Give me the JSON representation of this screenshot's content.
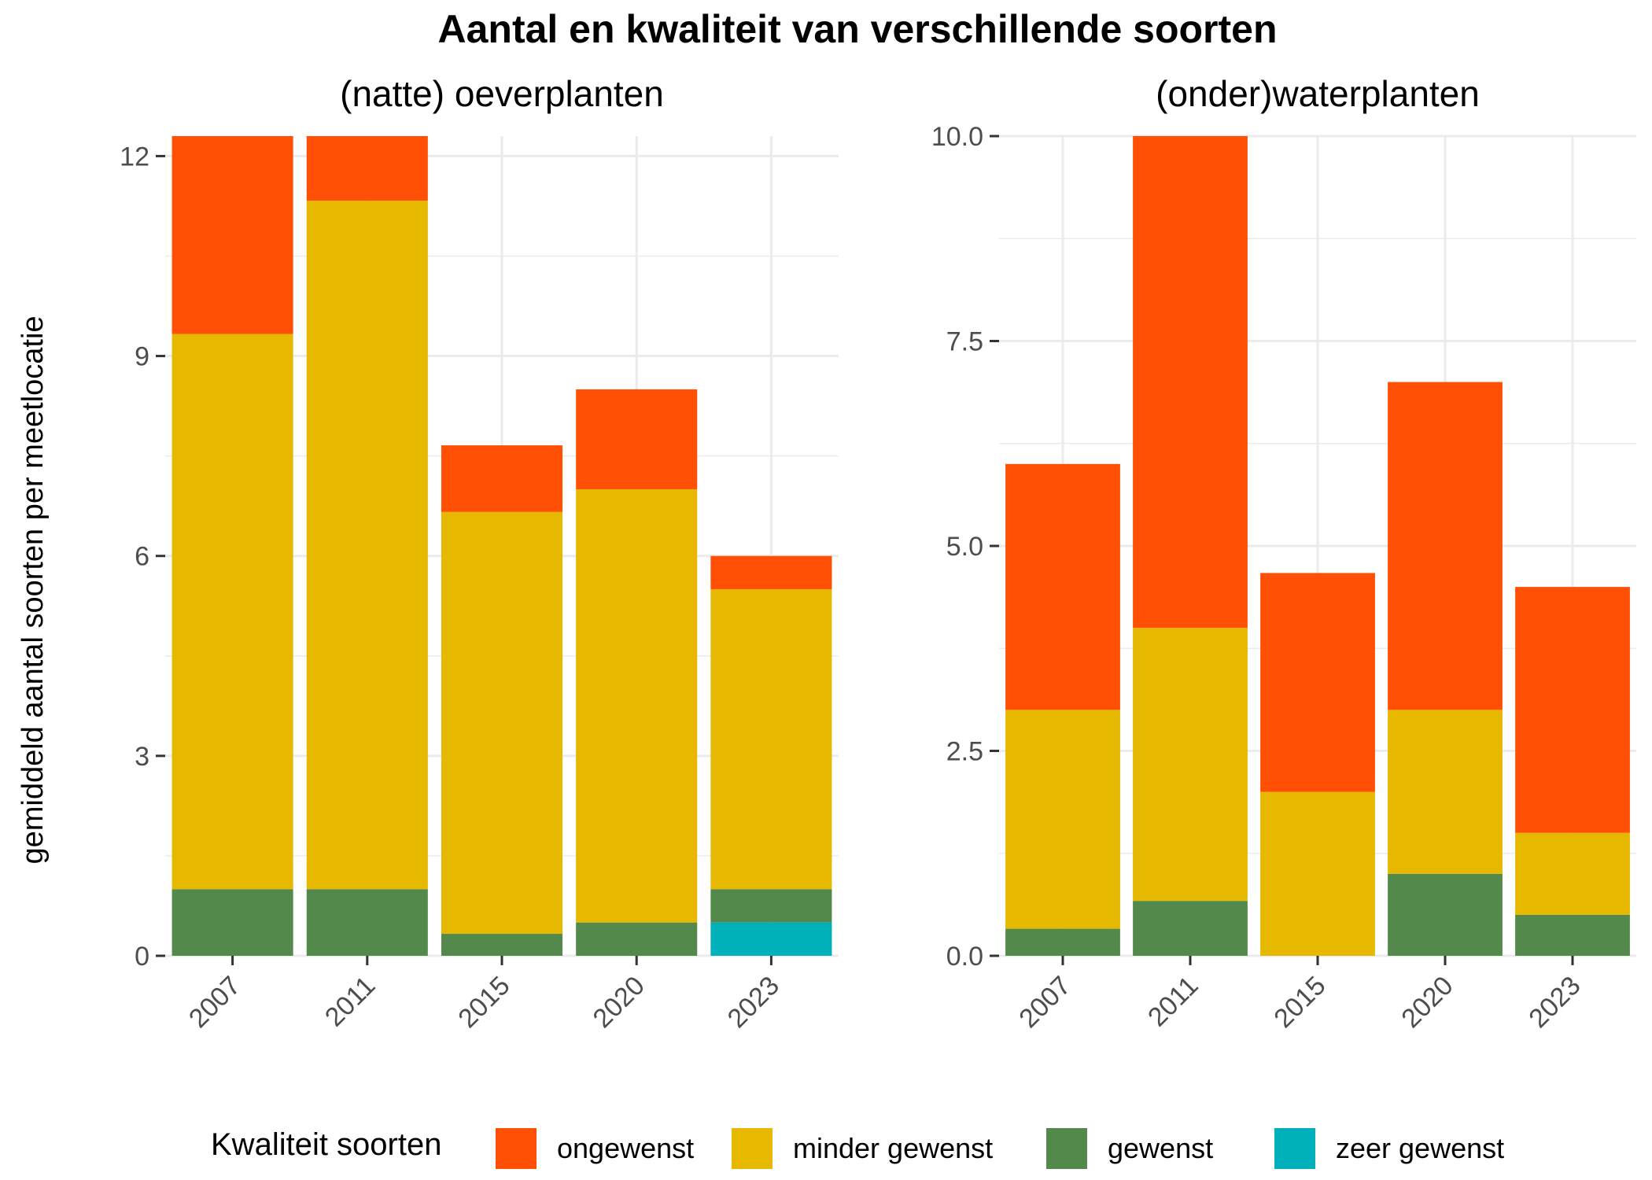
{
  "title": "Aantal en kwaliteit van verschillende soorten",
  "ylabel": "gemiddeld aantal soorten per meetlocatie",
  "legend": {
    "title": "Kwaliteit soorten",
    "position": "bottom",
    "entries": [
      "ongewenst",
      "minder gewenst",
      "gewenst",
      "zeer gewenst"
    ]
  },
  "colors": {
    "ongewenst": "#ff5005",
    "minder gewenst": "#e6b800",
    "gewenst": "#538a4b",
    "zeer gewenst": "#00b0bb"
  },
  "chart_data": [
    {
      "type": "bar",
      "stacked": true,
      "subtitle": "(natte) oeverplanten",
      "categories": [
        "2007",
        "2011",
        "2015",
        "2020",
        "2023"
      ],
      "ylim": [
        0,
        12.3
      ],
      "yticks": [
        0,
        3,
        6,
        9,
        12
      ],
      "ytick_labels": [
        "0",
        "3",
        "6",
        "9",
        "12"
      ],
      "grid": true,
      "series": [
        {
          "name": "zeer gewenst",
          "values": [
            0,
            0,
            0,
            0,
            0.5
          ]
        },
        {
          "name": "gewenst",
          "values": [
            1,
            1,
            0.33,
            0.5,
            0.5
          ]
        },
        {
          "name": "minder gewenst",
          "values": [
            8.33,
            10.33,
            6.33,
            6.5,
            4.5
          ]
        },
        {
          "name": "ongewenst",
          "values": [
            3.0,
            1.0,
            1.0,
            1.5,
            0.5
          ]
        }
      ]
    },
    {
      "type": "bar",
      "stacked": true,
      "subtitle": "(onder)waterplanten",
      "categories": [
        "2007",
        "2011",
        "2015",
        "2020",
        "2023"
      ],
      "ylim": [
        0,
        10.0
      ],
      "yticks": [
        0,
        2.5,
        5,
        7.5,
        10
      ],
      "ytick_labels": [
        "0.0",
        "2.5",
        "5.0",
        "7.5",
        "10.0"
      ],
      "grid": true,
      "series": [
        {
          "name": "zeer gewenst",
          "values": [
            0,
            0,
            0,
            0,
            0
          ]
        },
        {
          "name": "gewenst",
          "values": [
            0.33,
            0.67,
            0,
            1,
            0.5
          ]
        },
        {
          "name": "minder gewenst",
          "values": [
            2.67,
            3.33,
            2,
            2,
            1
          ]
        },
        {
          "name": "ongewenst",
          "values": [
            3.0,
            6.0,
            2.67,
            4.0,
            3.0
          ]
        }
      ]
    }
  ]
}
